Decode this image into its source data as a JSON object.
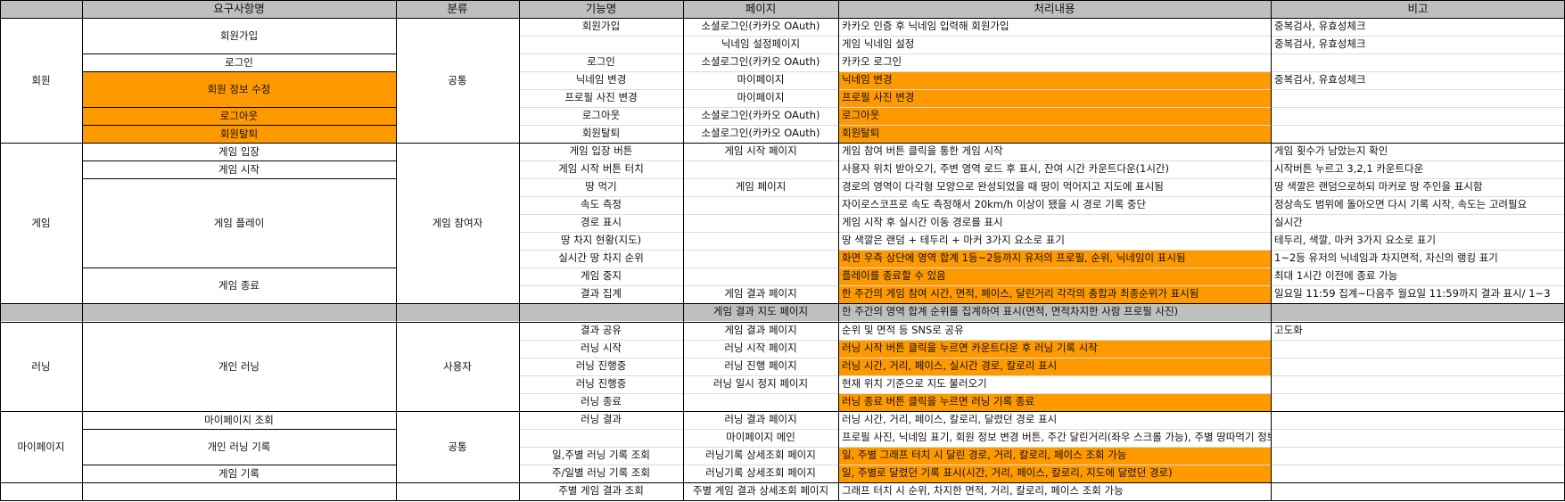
{
  "headers": [
    "요구사항명",
    "분류",
    "기능명",
    "페이지",
    "처리내용",
    "비고"
  ],
  "groups": {
    "member": "회원",
    "game": "게임",
    "running": "러닝",
    "mypage": "마이페이지"
  },
  "categories": {
    "common1": "공통",
    "game_participant": "게임 참여자",
    "user": "사용자",
    "common2": "공통"
  },
  "requirements": {
    "signup": "회원가입",
    "login": "로그인",
    "edit_profile": "회원 정보 수정",
    "logout": "로그아웃",
    "withdraw": "회원탈퇴",
    "game_enter": "게임 입장",
    "game_start": "게임 시작",
    "game_play": "게임 플레이",
    "game_end": "게임 종료",
    "personal_running": "개인 러닝",
    "mypage_view": "마이페이지 조회",
    "personal_record": "개인 러닝 기록",
    "game_record": "게임 기록"
  },
  "rows": [
    {
      "feature": "회원가입",
      "page": "소셜로그인(카카오 OAuth)",
      "process": "카카오 인증 후 닉네임 입력해 회원가입",
      "note": "중복검사, 유효성체크"
    },
    {
      "feature": "",
      "page": "닉네임 설정페이지",
      "process": "게임 닉네임 설정",
      "note": "중복검사, 유효성체크"
    },
    {
      "feature": "로그인",
      "page": "소셜로그인(카카오 OAuth)",
      "process": "카카오 로그인",
      "note": ""
    },
    {
      "feature": "닉네임 변경",
      "page": "마이페이지",
      "process": "닉네임 변경",
      "note": "중복검사, 유효성체크"
    },
    {
      "feature": "프로필 사진 변경",
      "page": "마이페이지",
      "process": "프로필 사진 변경",
      "note": ""
    },
    {
      "feature": "로그아웃",
      "page": "소셜로그인(카카오 OAuth)",
      "process": "로그아웃",
      "note": ""
    },
    {
      "feature": "회원탈퇴",
      "page": "소셜로그인(카카오 OAuth)",
      "process": "회원탈퇴",
      "note": ""
    },
    {
      "feature": "게임 입장 버튼",
      "page": "게임 시작 페이지",
      "process": "게임 참여 버튼 클릭을 통한 게임 시작",
      "note": "게임 횟수가 남았는지 확인"
    },
    {
      "feature": "게임 시작 버튼 터치",
      "page": "",
      "process": "사용자 위치 받아오기, 주변 영역 로드 후 표시, 잔여 시간 카운트다운(1시간)",
      "note": "시작버튼 누르고 3,2,1 카운트다운"
    },
    {
      "feature": "땅 먹기",
      "page": "게임 페이지",
      "process": "경로의 영역이 다각형 모양으로 완성되었을 때 땅이 먹어지고 지도에 표시됨",
      "note": "땅 색깔은 랜덤으로하되 마커로 땅 주인을 표시함"
    },
    {
      "feature": "속도 측정",
      "page": "",
      "process": "자이로스코프로 속도 측정해서 20km/h 이상이 됐을 시 경로 기록 중단",
      "note": "정상속도 범위에 돌아오면 다시 기록 시작, 속도는 고려필요"
    },
    {
      "feature": "경로 표시",
      "page": "",
      "process": "게임 시작 후 실시간 이동 경로를 표시",
      "note": "실시간"
    },
    {
      "feature": "땅 차지 현황(지도)",
      "page": "",
      "process": "땅 색깔은 랜덤 + 테두리 + 마커 3가지 요소로 표기",
      "note": "테두리, 색깔, 마커 3가지 요소로 표기"
    },
    {
      "feature": "실시간 땅 차지 순위",
      "page": "",
      "process": "화면 우측 상단에 영역 합계 1등~2등까지 유저의 프로필, 순위, 닉네임이 표시됨",
      "note": "1~2등 유저의 닉네임과 차지면적, 자신의 랭킹 표기"
    },
    {
      "feature": "게임 중지",
      "page": "",
      "process": "플레이를 종료할 수 있음",
      "note": "최대 1시간 이전에 종료 가능"
    },
    {
      "feature": "결과 집계",
      "page": "게임 결과 페이지",
      "process": "한 주간의 게임 참여 시간, 면적, 페이스, 달린거리 각각의 총합과 최종순위가 표시됨",
      "note": "일요일 11:59 집계~다음주 월요일 11:59까지 결과 표시/ 1~3"
    },
    {
      "feature": "",
      "page": "게임 결과 지도 페이지",
      "process": "한 주간의 영역 합계 순위를 집계하여 표시(면적, 면적차지한 사람 프로필 사진)",
      "note": ""
    },
    {
      "feature": "결과 공유",
      "page": "게임 결과 페이지",
      "process": "순위 및 면적 등 SNS로 공유",
      "note": "고도화"
    },
    {
      "feature": "러닝 시작",
      "page": "러닝 시작 페이지",
      "process": "러닝 시작 버튼 클릭을 누르면 카운트다운 후 러닝 기록 시작",
      "note": ""
    },
    {
      "feature": "러닝 진행중",
      "page": "러닝 진행 페이지",
      "process": "러닝 시간, 거리, 페이스, 실시간 경로, 칼로리 표시",
      "note": ""
    },
    {
      "feature": "러닝 진행중",
      "page": "러닝 일시 정지 페이지",
      "process": "현재 위치 기준으로 지도 불러오기",
      "note": ""
    },
    {
      "feature": "러닝 종료",
      "page": "",
      "process": "러닝 종료 버튼 클릭을 누르면 러닝 기록 종료",
      "note": ""
    },
    {
      "feature": "러닝 결과",
      "page": "러닝 결과 페이지",
      "process": "러닝 시간, 거리, 페이스, 칼로리, 달렸던 경로 표시",
      "note": ""
    },
    {
      "feature": "",
      "page": "마이페이지 메인",
      "process": "프로필 사진, 닉네임 표기, 회원 정보 변경 버튼, 주간 달린거리(좌우 스크롤 가능), 주별 땅따먹기 정보 조회 가능",
      "note": ""
    },
    {
      "feature": "일,주별 러닝 기록 조회",
      "page": "러닝기록 상세조회 페이지",
      "process": "일, 주별 그래프 터치 시 달린 경로, 거리, 칼로리, 페이스 조회 가능",
      "note": ""
    },
    {
      "feature": "주/일별 러닝 기록 조회",
      "page": "러닝기록 상세조회 페이지",
      "process": "일, 주별로 달렸던 기록 표시(시간, 거리, 페이스, 칼로리, 지도에 달렸던 경로)",
      "note": ""
    },
    {
      "feature": "주별 게임 결과 조회",
      "page": "주별 게임 결과 상세조회 페이지",
      "process": "그래프 터치 시 순위, 차지한 면적, 거리, 칼로리, 페이스 조회 가능",
      "note": ""
    }
  ],
  "colors": {
    "highlight": "#ff9900",
    "header_bg": "#bfbfbf",
    "grid": "#000000"
  }
}
